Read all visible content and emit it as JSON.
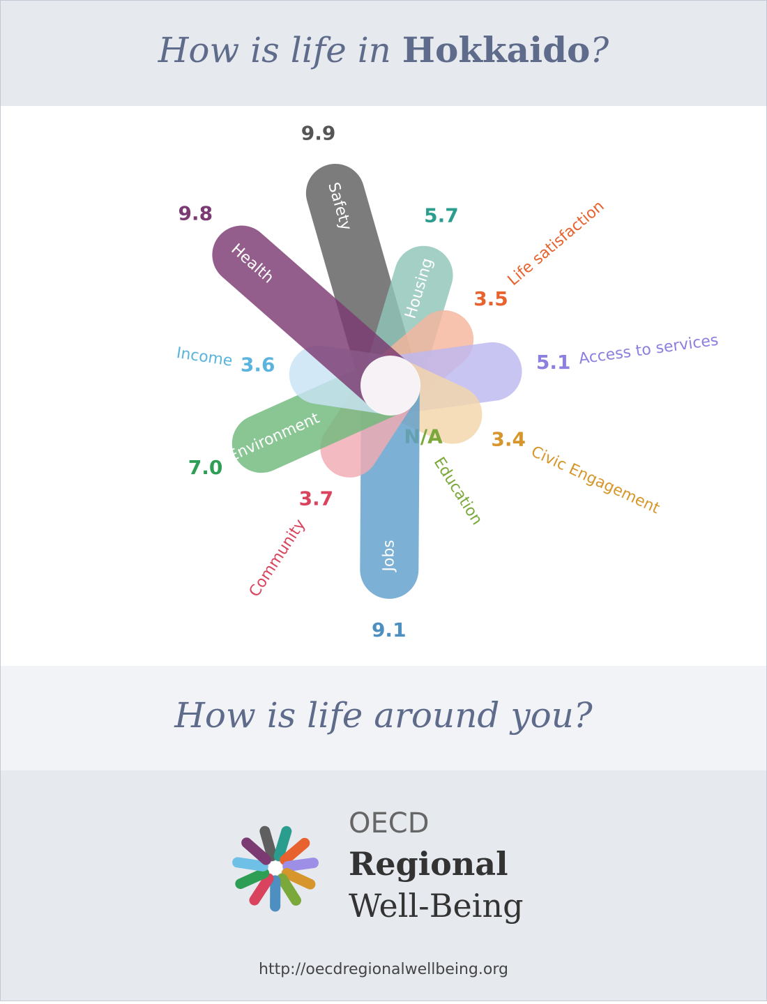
{
  "header": {
    "lead": "How is life in",
    "region": "Hokkaido",
    "end": "?"
  },
  "chart_data": {
    "type": "petal",
    "categories": [
      "Safety",
      "Housing",
      "Life satisfaction",
      "Access to services",
      "Civic Engagement",
      "Education",
      "Jobs",
      "Community",
      "Environment",
      "Income",
      "Health"
    ],
    "values": [
      9.9,
      5.7,
      3.5,
      5.1,
      3.4,
      null,
      9.1,
      3.7,
      7.0,
      3.6,
      9.8
    ],
    "value_labels": [
      "9.9",
      "5.7",
      "3.5",
      "5.1",
      "3.4",
      "N/A",
      "9.1",
      "3.7",
      "7.0",
      "3.6",
      "9.8"
    ],
    "colors": [
      "#5f5f5f",
      "#8fc4b8",
      "#f5b59c",
      "#bdb8f0",
      "#f3d6ab",
      "#7aa83a",
      "#5f9fcb",
      "#f2abb3",
      "#6fba7b",
      "#c8e3f4",
      "#7b3b72"
    ],
    "label_colors": [
      "#555555",
      "#2a9d8f",
      "#e8622f",
      "#8b7fe0",
      "#d6962b",
      "#7aa83a",
      "#4d8fc0",
      "#d9435e",
      "#2e9e55",
      "#5ab4de",
      "#7b3b72"
    ]
  },
  "prompt": "How is life around you?",
  "logo": {
    "line1": "OECD",
    "line2": "Regional",
    "line3": "Well-Being"
  },
  "url": "http://oecdregionalwellbeing.org"
}
